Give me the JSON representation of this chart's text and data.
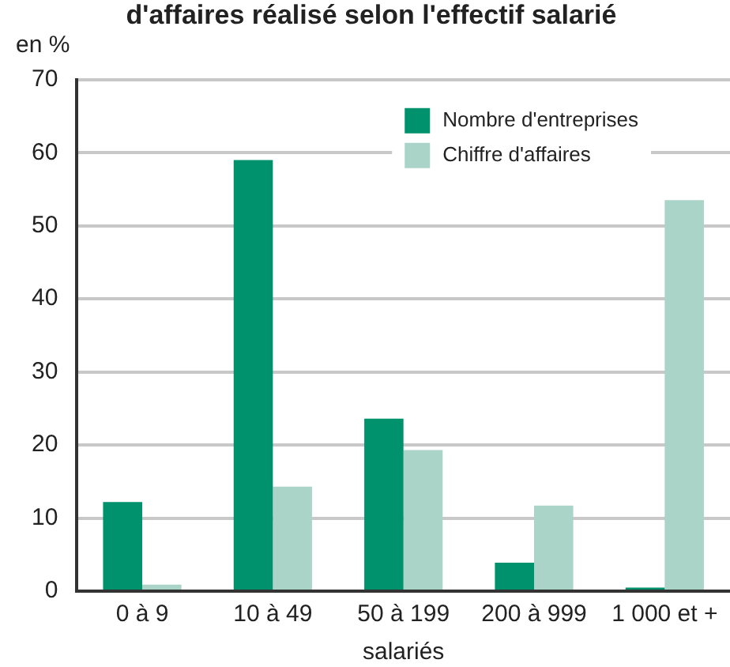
{
  "chart_data": {
    "type": "bar",
    "title": "d'affaires réalisé selon l'effectif salarié",
    "ylabel": "en %",
    "xlabel": "salariés",
    "categories": [
      "0 à 9",
      "10 à 49",
      "50 à 199",
      "200 à 999",
      "1 000 et +"
    ],
    "series": [
      {
        "name": "Nombre d'entreprises",
        "color": "#00926c",
        "values": [
          12.2,
          59.0,
          23.6,
          3.9,
          0.5
        ]
      },
      {
        "name": "Chiffre d'affaires",
        "color": "#aad4c8",
        "values": [
          0.9,
          14.3,
          19.3,
          11.7,
          53.5
        ]
      }
    ],
    "ylim": [
      0,
      70
    ],
    "yticks": [
      0,
      10,
      20,
      30,
      40,
      50,
      60,
      70
    ],
    "grid": "y",
    "legend": "top right"
  }
}
